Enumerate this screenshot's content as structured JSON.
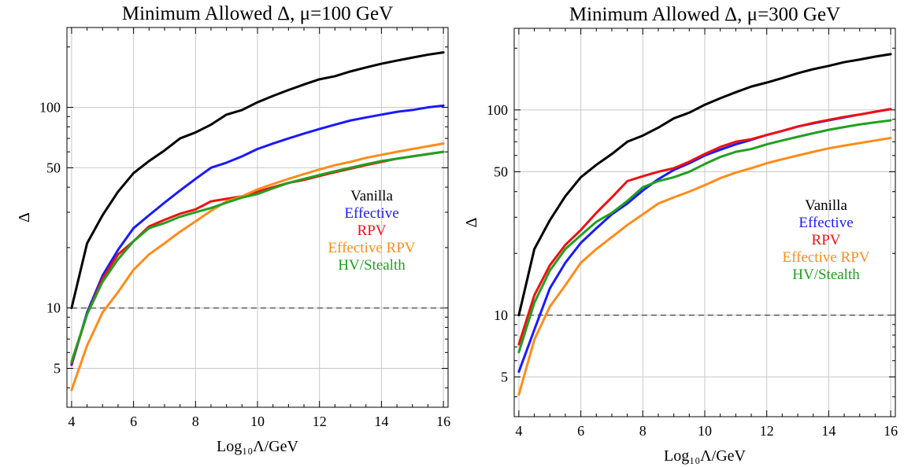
{
  "chart_data": [
    {
      "type": "line",
      "title": "Minimum Allowed Δ, μ=100 GeV",
      "xlabel": "Log₁₀Λ/GeV",
      "ylabel": "Δ",
      "xscale": "linear",
      "yscale": "log",
      "xlim": [
        3.85,
        16.15
      ],
      "ylim": [
        3.2,
        250
      ],
      "xticks": [
        4,
        6,
        8,
        10,
        12,
        14,
        16
      ],
      "xtick_labels": [
        "4",
        "6",
        "8",
        "10",
        "12",
        "14",
        "16"
      ],
      "yticks": [
        5,
        10,
        50,
        100
      ],
      "ytick_labels": [
        "5",
        "10",
        "50",
        "100"
      ],
      "grid": true,
      "legend_position": "right-middle",
      "reference_line": {
        "y": 10,
        "style": "dashed",
        "color": "#808080"
      },
      "x": [
        4,
        4.5,
        5,
        5.5,
        6,
        6.5,
        7,
        7.5,
        8,
        8.5,
        9,
        9.5,
        10,
        10.5,
        11,
        11.5,
        12,
        12.5,
        13,
        13.5,
        14,
        14.5,
        15,
        15.5,
        16
      ],
      "series": [
        {
          "name": "Vanilla",
          "color": "#000000",
          "values": [
            10,
            21,
            29,
            38,
            47,
            54,
            61,
            70,
            75,
            82,
            92,
            97,
            106,
            114,
            122,
            130,
            138,
            143,
            151,
            158,
            165,
            171,
            177,
            183,
            188
          ]
        },
        {
          "name": "Effective",
          "color": "#1a1aff",
          "values": [
            5.2,
            9.5,
            14.5,
            19.5,
            25,
            29,
            33.5,
            38.5,
            44,
            50,
            53,
            57,
            62,
            66,
            70,
            74,
            78,
            82,
            86,
            89,
            92,
            95,
            97,
            100,
            102
          ]
        },
        {
          "name": "RPV",
          "color": "#ee1111",
          "values": [
            5.3,
            9.3,
            14,
            18.5,
            21.5,
            25.5,
            27.5,
            29.5,
            31,
            34,
            35,
            36,
            38,
            40,
            42,
            43.5,
            45.5,
            47.5,
            49.5,
            51.5,
            53.5,
            55.5,
            57,
            58.5,
            60
          ]
        },
        {
          "name": "Effective RPV",
          "color": "#ff8c1a",
          "values": [
            3.9,
            6.5,
            9.5,
            12,
            15.5,
            18.5,
            21,
            24,
            27,
            30.5,
            34,
            36,
            39,
            41.5,
            44,
            46.5,
            49,
            51.5,
            53.5,
            56,
            58,
            60,
            62,
            64,
            66
          ]
        },
        {
          "name": "HV/Stealth",
          "color": "#20a020",
          "values": [
            5.4,
            9.3,
            13.5,
            17.5,
            21.5,
            25,
            26.5,
            28.5,
            30,
            31.5,
            33.5,
            35.5,
            37,
            39.5,
            42,
            44,
            46,
            48,
            50,
            52,
            54,
            55.5,
            57,
            58.5,
            60
          ]
        }
      ]
    },
    {
      "type": "line",
      "title": "Minimum Allowed Δ, μ=300 GeV",
      "xlabel": "Log₁₀Λ/GeV",
      "ylabel": "Δ",
      "xscale": "linear",
      "yscale": "log",
      "xlim": [
        3.85,
        16.15
      ],
      "ylim": [
        3.2,
        250
      ],
      "xticks": [
        4,
        6,
        8,
        10,
        12,
        14,
        16
      ],
      "xtick_labels": [
        "4",
        "6",
        "8",
        "10",
        "12",
        "14",
        "16"
      ],
      "yticks": [
        5,
        10,
        50,
        100
      ],
      "ytick_labels": [
        "5",
        "10",
        "50",
        "100"
      ],
      "grid": true,
      "legend_position": "right-middle",
      "reference_line": {
        "y": 10,
        "style": "dashed",
        "color": "#808080"
      },
      "x": [
        4,
        4.5,
        5,
        5.5,
        6,
        6.5,
        7,
        7.5,
        8,
        8.5,
        9,
        9.5,
        10,
        10.5,
        11,
        11.5,
        12,
        12.5,
        13,
        13.5,
        14,
        14.5,
        15,
        15.5,
        16
      ],
      "series": [
        {
          "name": "Vanilla",
          "color": "#000000",
          "values": [
            10,
            21,
            29,
            38,
            47,
            54,
            61,
            70,
            75,
            82,
            91,
            97,
            106,
            114,
            122,
            130,
            136,
            143,
            151,
            158,
            164,
            171,
            176,
            182,
            187
          ]
        },
        {
          "name": "Effective",
          "color": "#1a1aff",
          "values": [
            5.3,
            8.5,
            13.5,
            18,
            22.5,
            26.5,
            31,
            35,
            40.5,
            46,
            51,
            55,
            60,
            64,
            68,
            71.5,
            75.5,
            79,
            83,
            86,
            89,
            92,
            95,
            98,
            101
          ]
        },
        {
          "name": "RPV",
          "color": "#ee1111",
          "values": [
            7.2,
            12.5,
            17.5,
            22,
            26,
            31.5,
            37.5,
            45,
            47.5,
            50,
            52,
            56,
            61,
            66,
            70,
            72,
            75.5,
            79,
            83,
            86.5,
            89.5,
            92.5,
            95,
            98,
            101
          ]
        },
        {
          "name": "Effective RPV",
          "color": "#ff8c1a",
          "values": [
            4.1,
            7.6,
            11,
            14,
            18,
            21,
            24,
            27.5,
            31,
            35,
            37.5,
            40,
            43,
            46.5,
            49.5,
            52,
            55,
            57.5,
            60,
            62.5,
            65,
            67,
            69,
            71,
            73
          ]
        },
        {
          "name": "HV/Stealth",
          "color": "#20a020",
          "values": [
            6.6,
            11.5,
            16.5,
            21,
            24.5,
            28.5,
            31.5,
            36,
            42,
            45,
            47,
            50,
            54.5,
            59,
            62.5,
            64.5,
            68,
            71,
            74,
            77,
            80,
            82.5,
            85,
            87,
            89
          ]
        }
      ]
    }
  ]
}
